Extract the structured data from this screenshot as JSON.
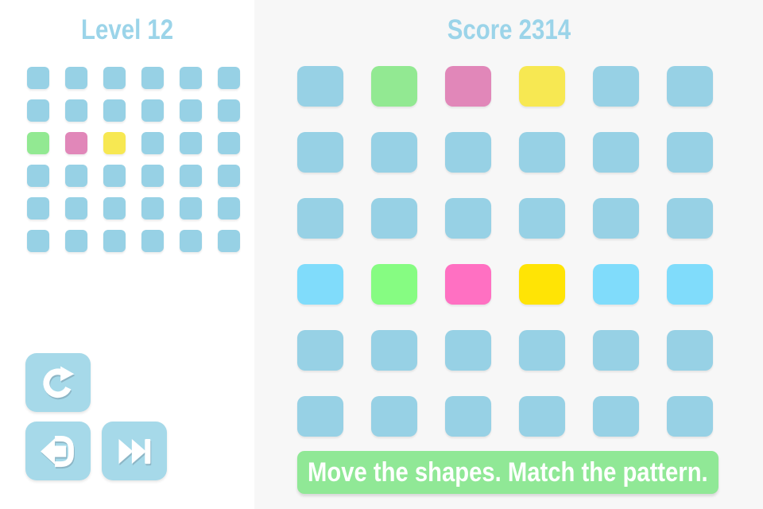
{
  "palette": {
    "b": "#97D1E5",
    "g": "#92E992",
    "p": "#E187B9",
    "y": "#F7E852",
    "B": "#80DCFB",
    "G": "#86FC82",
    "P": "#FF70C2",
    "Y": "#FFE405"
  },
  "left_panel": {
    "title": "Level 12",
    "pattern_grid": {
      "rows": [
        "bbbbbb",
        "bbbbbb",
        "gpybbb",
        "bbbbbb",
        "bbbbbb",
        "bbbbbb"
      ]
    },
    "buttons": [
      {
        "name": "restart"
      },
      {
        "name": "exit"
      },
      {
        "name": "skip"
      }
    ]
  },
  "right_panel": {
    "title": "Score 2314",
    "score_value": 2314,
    "level_value": 12,
    "board_grid": {
      "rows": [
        "bgpybb",
        "bbbbbb",
        "bbbbbb",
        "BGPYBB",
        "bbbbbb",
        "bbbbbb"
      ]
    },
    "banner": "Move the shapes. Match the pattern."
  },
  "colors": {
    "title_text": "#9BD4E9",
    "button_bg": "#A6D9E9",
    "banner_bg": "#90E896",
    "left_bg": "#FFFFFF",
    "right_bg": "#F7F7F7",
    "icon": "#FFFFFF"
  }
}
